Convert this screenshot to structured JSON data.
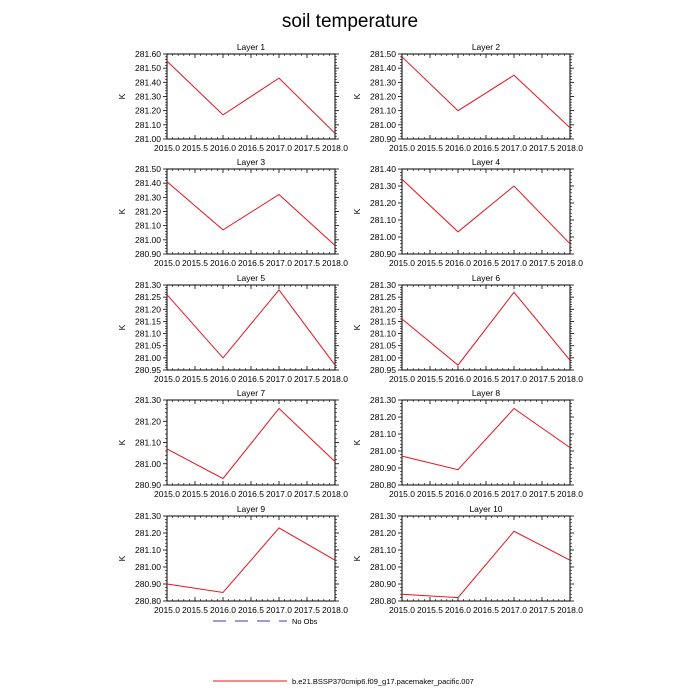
{
  "title": "soil temperature",
  "legend": {
    "entries": [
      {
        "label": "No Obs",
        "style": "dashed",
        "color": "#3b3bb5"
      },
      {
        "label": "b.e21.BSSP370cmip6.f09_g17.pacemaker_pacific.007",
        "style": "solid",
        "color": "#e8141c"
      }
    ]
  },
  "chart_data": [
    {
      "type": "line",
      "title": "Layer 1",
      "ylabel": "K",
      "x": [
        2015.0,
        2016.0,
        2017.0,
        2018.0
      ],
      "xlim": [
        2015.0,
        2018.0
      ],
      "xticks": [
        "2015.0",
        "2015.5",
        "2016.0",
        "2016.5",
        "2017.0",
        "2017.5",
        "2018.0"
      ],
      "ylim": [
        281.0,
        281.6
      ],
      "yticks": [
        "281.00",
        "281.10",
        "281.20",
        "281.30",
        "281.40",
        "281.50",
        "281.60"
      ],
      "series": [
        {
          "values": [
            281.55,
            281.17,
            281.43,
            281.04
          ],
          "color": "#e8141c"
        }
      ]
    },
    {
      "type": "line",
      "title": "Layer 2",
      "ylabel": "K",
      "x": [
        2015.0,
        2016.0,
        2017.0,
        2018.0
      ],
      "xlim": [
        2015.0,
        2018.0
      ],
      "xticks": [
        "2015.0",
        "2015.5",
        "2016.0",
        "2016.5",
        "2017.0",
        "2017.5",
        "2018.0"
      ],
      "ylim": [
        280.9,
        281.5
      ],
      "yticks": [
        "280.90",
        "281.00",
        "281.10",
        "281.20",
        "281.30",
        "281.40",
        "281.50"
      ],
      "series": [
        {
          "values": [
            281.48,
            281.1,
            281.35,
            280.98
          ],
          "color": "#e8141c"
        }
      ]
    },
    {
      "type": "line",
      "title": "Layer 3",
      "ylabel": "K",
      "x": [
        2015.0,
        2016.0,
        2017.0,
        2018.0
      ],
      "xlim": [
        2015.0,
        2018.0
      ],
      "xticks": [
        "2015.0",
        "2015.5",
        "2016.0",
        "2016.5",
        "2017.0",
        "2017.5",
        "2018.0"
      ],
      "ylim": [
        280.9,
        281.5
      ],
      "yticks": [
        "280.90",
        "281.00",
        "281.10",
        "281.20",
        "281.30",
        "281.40",
        "281.50"
      ],
      "series": [
        {
          "values": [
            281.41,
            281.07,
            281.32,
            280.96
          ],
          "color": "#e8141c"
        }
      ]
    },
    {
      "type": "line",
      "title": "Layer 4",
      "ylabel": "K",
      "x": [
        2015.0,
        2016.0,
        2017.0,
        2018.0
      ],
      "xlim": [
        2015.0,
        2018.0
      ],
      "xticks": [
        "2015.0",
        "2015.5",
        "2016.0",
        "2016.5",
        "2017.0",
        "2017.5",
        "2018.0"
      ],
      "ylim": [
        280.9,
        281.4
      ],
      "yticks": [
        "280.90",
        "281.00",
        "281.10",
        "281.20",
        "281.30",
        "281.40"
      ],
      "series": [
        {
          "values": [
            281.34,
            281.03,
            281.3,
            280.96
          ],
          "color": "#e8141c"
        }
      ]
    },
    {
      "type": "line",
      "title": "Layer 5",
      "ylabel": "K",
      "x": [
        2015.0,
        2016.0,
        2017.0,
        2018.0
      ],
      "xlim": [
        2015.0,
        2018.0
      ],
      "xticks": [
        "2015.0",
        "2015.5",
        "2016.0",
        "2016.5",
        "2017.0",
        "2017.5",
        "2018.0"
      ],
      "ylim": [
        280.95,
        281.3
      ],
      "yticks": [
        "280.95",
        "281.00",
        "281.05",
        "281.10",
        "281.15",
        "281.20",
        "281.25",
        "281.30"
      ],
      "series": [
        {
          "values": [
            281.26,
            281.0,
            281.28,
            280.97
          ],
          "color": "#e8141c"
        }
      ]
    },
    {
      "type": "line",
      "title": "Layer 6",
      "ylabel": "K",
      "x": [
        2015.0,
        2016.0,
        2017.0,
        2018.0
      ],
      "xlim": [
        2015.0,
        2018.0
      ],
      "xticks": [
        "2015.0",
        "2015.5",
        "2016.0",
        "2016.5",
        "2017.0",
        "2017.5",
        "2018.0"
      ],
      "ylim": [
        280.95,
        281.3
      ],
      "yticks": [
        "280.95",
        "281.00",
        "281.05",
        "281.10",
        "281.15",
        "281.20",
        "281.25",
        "281.30"
      ],
      "series": [
        {
          "values": [
            281.16,
            280.97,
            281.27,
            280.99
          ],
          "color": "#e8141c"
        }
      ]
    },
    {
      "type": "line",
      "title": "Layer 7",
      "ylabel": "K",
      "x": [
        2015.0,
        2016.0,
        2017.0,
        2018.0
      ],
      "xlim": [
        2015.0,
        2018.0
      ],
      "xticks": [
        "2015.0",
        "2015.5",
        "2016.0",
        "2016.5",
        "2017.0",
        "2017.5",
        "2018.0"
      ],
      "ylim": [
        280.9,
        281.3
      ],
      "yticks": [
        "280.90",
        "281.00",
        "281.10",
        "281.20",
        "281.30"
      ],
      "series": [
        {
          "values": [
            281.07,
            280.93,
            281.26,
            281.01
          ],
          "color": "#e8141c"
        }
      ]
    },
    {
      "type": "line",
      "title": "Layer 8",
      "ylabel": "K",
      "x": [
        2015.0,
        2016.0,
        2017.0,
        2018.0
      ],
      "xlim": [
        2015.0,
        2018.0
      ],
      "xticks": [
        "2015.0",
        "2015.5",
        "2016.0",
        "2016.5",
        "2017.0",
        "2017.5",
        "2018.0"
      ],
      "ylim": [
        280.8,
        281.3
      ],
      "yticks": [
        "280.80",
        "280.90",
        "281.00",
        "281.10",
        "281.20",
        "281.30"
      ],
      "series": [
        {
          "values": [
            280.97,
            280.89,
            281.25,
            281.02
          ],
          "color": "#e8141c"
        }
      ]
    },
    {
      "type": "line",
      "title": "Layer 9",
      "ylabel": "K",
      "x": [
        2015.0,
        2016.0,
        2017.0,
        2018.0
      ],
      "xlim": [
        2015.0,
        2018.0
      ],
      "xticks": [
        "2015.0",
        "2015.5",
        "2016.0",
        "2016.5",
        "2017.0",
        "2017.5",
        "2018.0"
      ],
      "ylim": [
        280.8,
        281.3
      ],
      "yticks": [
        "280.80",
        "280.90",
        "281.00",
        "281.10",
        "281.20",
        "281.30"
      ],
      "series": [
        {
          "values": [
            280.9,
            280.85,
            281.23,
            281.04
          ],
          "color": "#e8141c"
        }
      ]
    },
    {
      "type": "line",
      "title": "Layer 10",
      "ylabel": "K",
      "x": [
        2015.0,
        2016.0,
        2017.0,
        2018.0
      ],
      "xlim": [
        2015.0,
        2018.0
      ],
      "xticks": [
        "2015.0",
        "2015.5",
        "2016.0",
        "2016.5",
        "2017.0",
        "2017.5",
        "2018.0"
      ],
      "ylim": [
        280.8,
        281.3
      ],
      "yticks": [
        "280.80",
        "280.90",
        "281.00",
        "281.10",
        "281.20",
        "281.30"
      ],
      "series": [
        {
          "values": [
            280.84,
            280.82,
            281.21,
            281.04
          ],
          "color": "#e8141c"
        }
      ]
    }
  ]
}
